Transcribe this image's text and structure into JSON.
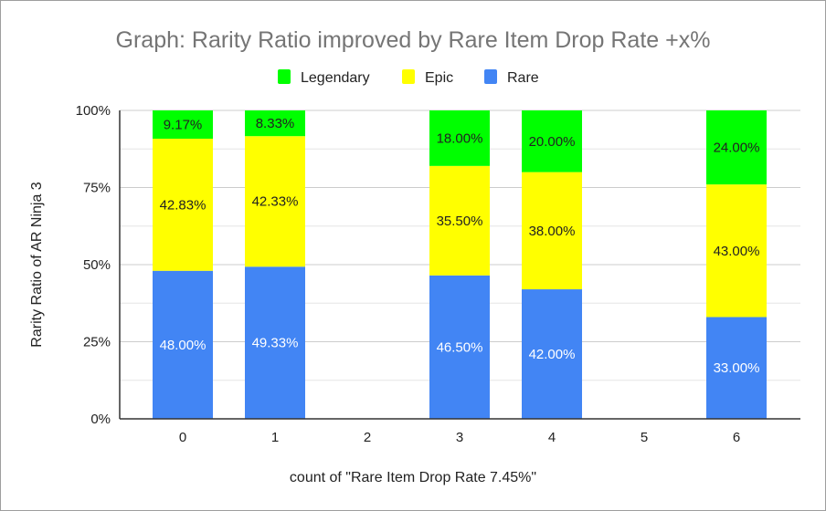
{
  "chart_data": {
    "type": "bar",
    "stacked": true,
    "percent_stacked": true,
    "title": "Graph: Rarity Ratio improved by Rare Item Drop Rate +x%",
    "xlabel": "count of \"Rare Item Drop Rate 7.45%\"",
    "ylabel": "Rarity Ratio of AR Ninja 3",
    "categories": [
      "0",
      "1",
      "2",
      "3",
      "4",
      "5",
      "6"
    ],
    "ylim": [
      0,
      100
    ],
    "yticks": [
      "0%",
      "25%",
      "50%",
      "75%",
      "100%"
    ],
    "grid": true,
    "legend_position": "top",
    "series": [
      {
        "name": "Rare",
        "color": "#4285f4",
        "label_color": "#ffffff",
        "values": [
          48.0,
          49.33,
          null,
          46.5,
          42.0,
          null,
          33.0
        ],
        "labels": [
          "48.00%",
          "49.33%",
          null,
          "46.50%",
          "42.00%",
          null,
          "33.00%"
        ]
      },
      {
        "name": "Epic",
        "color": "#ffff00",
        "label_color": "#222222",
        "values": [
          42.83,
          42.33,
          null,
          35.5,
          38.0,
          null,
          43.0
        ],
        "labels": [
          "42.83%",
          "42.33%",
          null,
          "35.50%",
          "38.00%",
          null,
          "43.00%"
        ]
      },
      {
        "name": "Legendary",
        "color": "#00ff00",
        "label_color": "#222222",
        "values": [
          9.17,
          8.33,
          null,
          18.0,
          20.0,
          null,
          24.0
        ],
        "labels": [
          "9.17%",
          "8.33%",
          null,
          "18.00%",
          "20.00%",
          null,
          "24.00%"
        ]
      }
    ],
    "legend": [
      {
        "name": "Legendary",
        "color": "#00ff00"
      },
      {
        "name": "Epic",
        "color": "#ffff00"
      },
      {
        "name": "Rare",
        "color": "#4285f4"
      }
    ]
  }
}
